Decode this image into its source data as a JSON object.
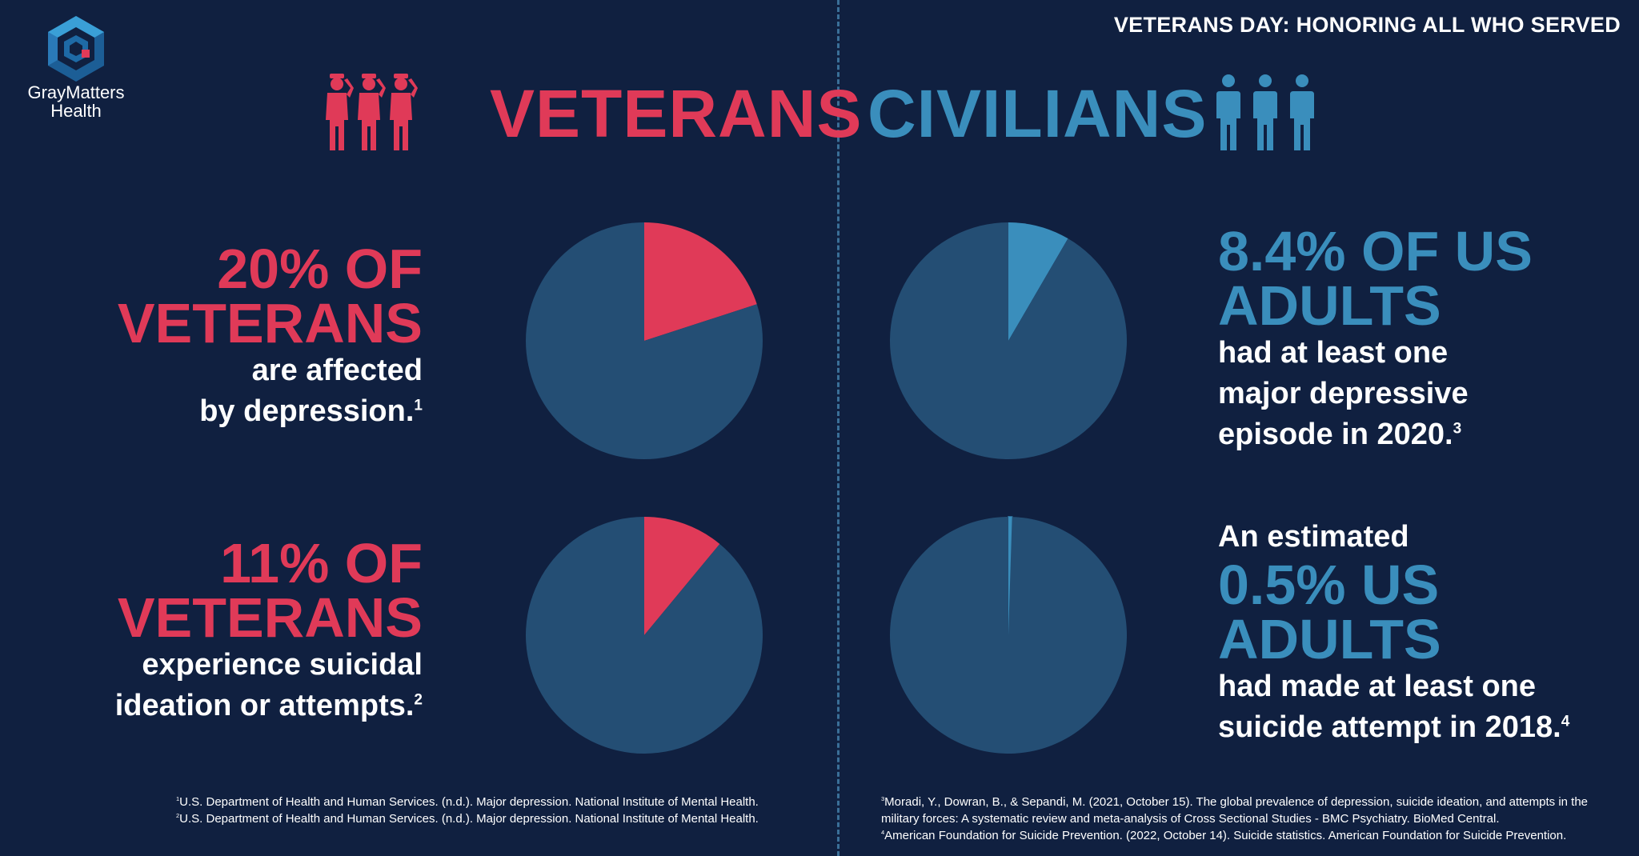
{
  "logo": {
    "line1": "GrayMatters",
    "line2": "Health"
  },
  "banner": "VETERANS DAY: HONORING ALL WHO SERVED",
  "headings": {
    "veterans": "VETERANS",
    "civilians": "CIVILIANS"
  },
  "icons": {
    "veterans": "saluting-soldiers-icon",
    "civilians": "people-icon"
  },
  "colors": {
    "background": "#102040",
    "veterans": "#e03a58",
    "civilians": "#3a8ebc",
    "pie_base": "#244e74"
  },
  "stats": {
    "vet_depression": {
      "big1": "20% OF",
      "big2": "VETERANS",
      "small1": "are affected",
      "small2": "by depression.",
      "ref": "1"
    },
    "vet_suicide": {
      "big1": "11% OF",
      "big2": "VETERANS",
      "small1": "experience suicidal",
      "small2": "ideation or attempts.",
      "ref": "2"
    },
    "civ_depression": {
      "big1": "8.4% OF US",
      "big2": "ADULTS",
      "small1": "had at least one",
      "small2": "major depressive",
      "small3": "episode in 2020.",
      "ref": "3"
    },
    "civ_suicide": {
      "pre": "An estimated",
      "big1": "0.5% US",
      "big2": "ADULTS",
      "small1": "had made at least one",
      "small2": "suicide attempt in 2018.",
      "ref": "4"
    }
  },
  "chart_data": [
    {
      "type": "pie",
      "group": "veterans",
      "slices": [
        {
          "label": "Veterans affected by depression",
          "value": 20
        },
        {
          "label": "Other",
          "value": 80
        }
      ]
    },
    {
      "type": "pie",
      "group": "civilians",
      "slices": [
        {
          "label": "US adults with a major depressive episode",
          "value": 8.4
        },
        {
          "label": "Other",
          "value": 91.6
        }
      ]
    },
    {
      "type": "pie",
      "group": "veterans",
      "slices": [
        {
          "label": "Veterans with suicidal ideation or attempts",
          "value": 11
        },
        {
          "label": "Other",
          "value": 89
        }
      ]
    },
    {
      "type": "pie",
      "group": "civilians",
      "slices": [
        {
          "label": "US adults with a suicide attempt",
          "value": 0.5
        },
        {
          "label": "Other",
          "value": 99.5
        }
      ]
    }
  ],
  "footnotes": {
    "left": [
      {
        "num": "1",
        "text": "U.S. Department of Health and Human Services. (n.d.). Major depression. National Institute of Mental Health."
      },
      {
        "num": "2",
        "text": "U.S. Department of Health and Human Services. (n.d.). Major depression. National Institute of Mental Health."
      }
    ],
    "right": [
      {
        "num": "3",
        "text": "Moradi, Y., Dowran, B., & Sepandi, M. (2021, October 15). The global prevalence of depression, suicide ideation, and attempts in the military forces: A systematic review and meta-analysis of Cross Sectional Studies - BMC Psychiatry. BioMed Central."
      },
      {
        "num": "4",
        "text": "American Foundation for Suicide Prevention. (2022, October 14). Suicide statistics. American Foundation for Suicide Prevention."
      }
    ]
  }
}
